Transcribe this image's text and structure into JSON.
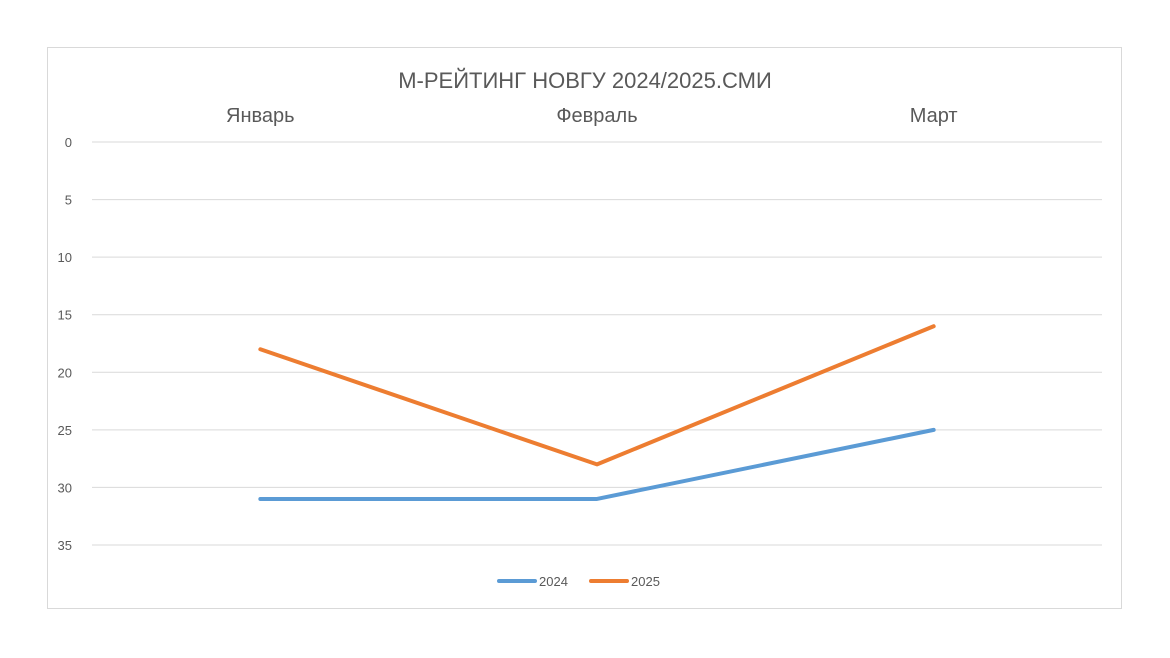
{
  "chart_data": {
    "type": "line",
    "title": "М-РЕЙТИНГ НОВГУ 2024/2025.СМИ",
    "categories": [
      "Январь",
      "Февраль",
      "Март"
    ],
    "y_ticks": [
      "0",
      "5",
      "10",
      "15",
      "20",
      "25",
      "30",
      "35"
    ],
    "ylim": [
      0,
      35
    ],
    "y_reversed": true,
    "x_axis_position": "top",
    "grid": true,
    "legend_position": "bottom",
    "series": [
      {
        "name": "2024",
        "values": [
          31,
          31,
          25
        ],
        "color": "#5b9bd5"
      },
      {
        "name": "2025",
        "values": [
          18,
          28,
          16
        ],
        "color": "#ed7d31"
      }
    ]
  }
}
